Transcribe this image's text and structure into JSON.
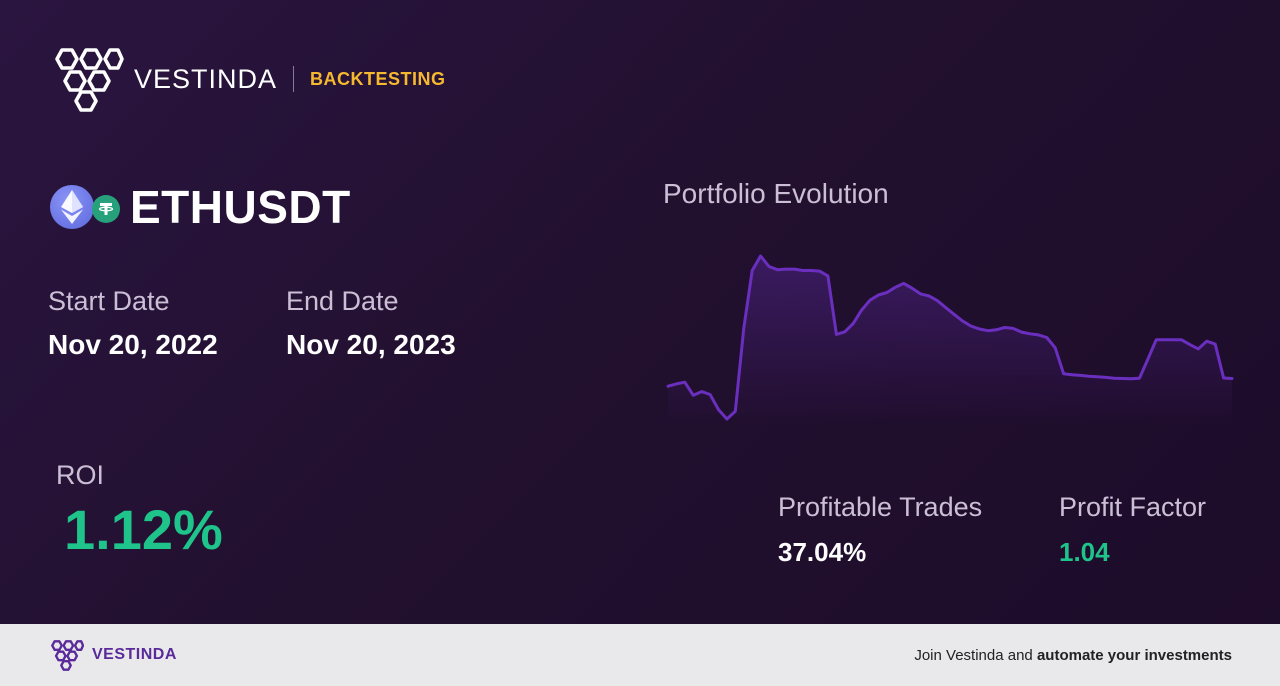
{
  "brand": {
    "name": "VESTINDA",
    "tag": "BACKTESTING",
    "tag_color": "#f5b82e"
  },
  "pair": {
    "symbol": "ETHUSDT",
    "icons": [
      "ethereum-icon",
      "tether-icon"
    ]
  },
  "dates": {
    "start_label": "Start Date",
    "start_value": "Nov 20, 2022",
    "end_label": "End Date",
    "end_value": "Nov 20, 2023"
  },
  "roi": {
    "label": "ROI",
    "value": "1.12%",
    "color": "#1fc48a"
  },
  "chart_title": "Portfolio Evolution",
  "chart_data": {
    "type": "area",
    "title": "Portfolio Evolution",
    "xlabel": "",
    "ylabel": "",
    "grid": false,
    "color": "#6a2fbf",
    "values": [
      0.938,
      0.946,
      0.952,
      0.906,
      0.919,
      0.909,
      0.856,
      0.823,
      0.85,
      1.142,
      1.344,
      1.395,
      1.358,
      1.347,
      1.349,
      1.349,
      1.344,
      1.344,
      1.342,
      1.325,
      1.12,
      1.129,
      1.158,
      1.205,
      1.24,
      1.258,
      1.267,
      1.285,
      1.299,
      1.282,
      1.262,
      1.255,
      1.238,
      1.214,
      1.19,
      1.167,
      1.149,
      1.139,
      1.133,
      1.136,
      1.144,
      1.141,
      1.128,
      1.122,
      1.118,
      1.109,
      1.073,
      0.982,
      0.978,
      0.976,
      0.973,
      0.971,
      0.969,
      0.966,
      0.965,
      0.964,
      0.966,
      1.032,
      1.101,
      1.101,
      1.101,
      1.101,
      1.084,
      1.069,
      1.096,
      1.086,
      0.967,
      0.965
    ]
  },
  "metrics": {
    "profitable_trades_label": "Profitable Trades",
    "profitable_trades_value": "37.04%",
    "profit_factor_label": "Profit Factor",
    "profit_factor_value": "1.04"
  },
  "footer": {
    "brand": "VESTINDA",
    "cta_prefix": "Join Vestinda and ",
    "cta_bold": "automate your investments"
  }
}
